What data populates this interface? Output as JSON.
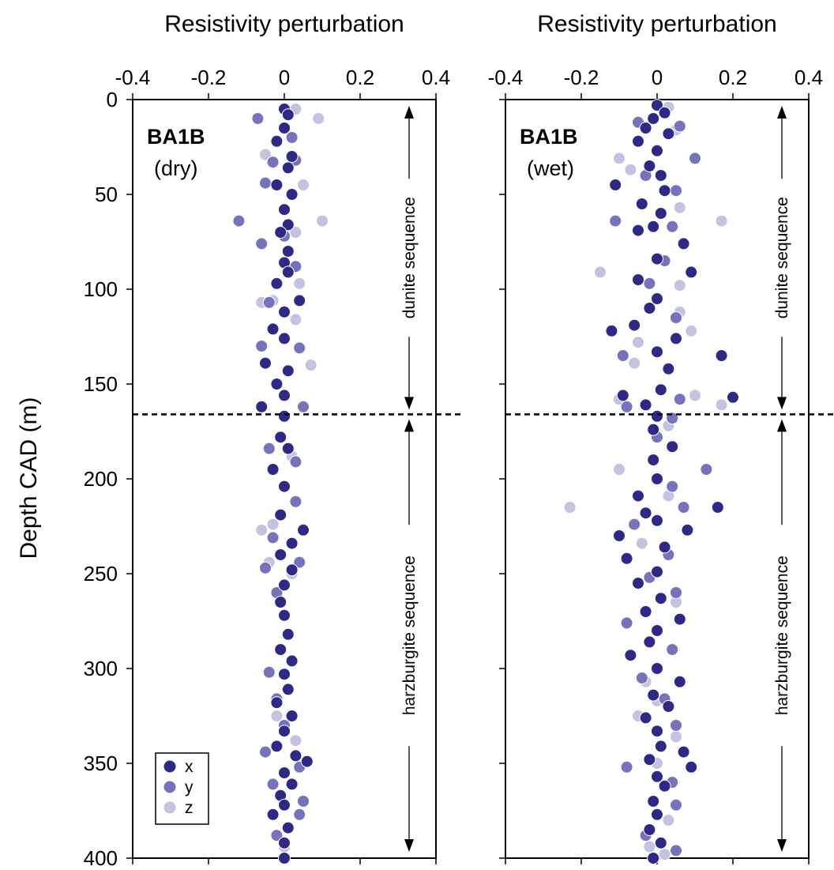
{
  "chart_data": [
    {
      "type": "scatter",
      "title": "Resistivity perturbation",
      "label_bold": "BA1B",
      "label_sub": "(dry)",
      "xlim": [
        -0.4,
        0.4
      ],
      "xticks": [
        -0.4,
        -0.2,
        0,
        0.2,
        0.4
      ],
      "xtick_labels": [
        "-0.4",
        "-0.2",
        "0",
        "0.2",
        "0.4"
      ],
      "ylim": [
        0,
        400
      ],
      "y_reversed": true,
      "boundary_depth": 166,
      "sequences": [
        {
          "label": "dunite sequence",
          "from": 0,
          "to": 166
        },
        {
          "label": "harzburgite sequence",
          "from": 166,
          "to": 400
        }
      ],
      "series": [
        {
          "name": "x",
          "points": [
            [
              0.0,
              5
            ],
            [
              0.01,
              8
            ],
            [
              0.0,
              15
            ],
            [
              -0.02,
              22
            ],
            [
              0.02,
              30
            ],
            [
              0.01,
              36
            ],
            [
              -0.02,
              45
            ],
            [
              0.02,
              50
            ],
            [
              0.0,
              58
            ],
            [
              0.01,
              66
            ],
            [
              -0.01,
              70
            ],
            [
              0.01,
              80
            ],
            [
              0.0,
              86
            ],
            [
              0.01,
              91
            ],
            [
              -0.02,
              97
            ],
            [
              0.04,
              106
            ],
            [
              0.0,
              112
            ],
            [
              -0.03,
              121
            ],
            [
              0.0,
              126
            ],
            [
              -0.05,
              139
            ],
            [
              0.01,
              143
            ],
            [
              -0.02,
              150
            ],
            [
              0.0,
              156
            ],
            [
              -0.06,
              162
            ],
            [
              0.0,
              167
            ],
            [
              -0.01,
              178
            ],
            [
              0.01,
              184
            ],
            [
              -0.03,
              195
            ],
            [
              0.0,
              204
            ],
            [
              -0.01,
              219
            ],
            [
              0.05,
              227
            ],
            [
              0.02,
              234
            ],
            [
              -0.01,
              240
            ],
            [
              0.02,
              248
            ],
            [
              0.0,
              256
            ],
            [
              -0.01,
              265
            ],
            [
              0.0,
              272
            ],
            [
              0.01,
              282
            ],
            [
              -0.01,
              290
            ],
            [
              0.02,
              296
            ],
            [
              0.0,
              303
            ],
            [
              0.01,
              311
            ],
            [
              -0.02,
              318
            ],
            [
              0.02,
              325
            ],
            [
              0.0,
              333
            ],
            [
              -0.02,
              341
            ],
            [
              0.03,
              346
            ],
            [
              0.06,
              349
            ],
            [
              0.0,
              355
            ],
            [
              0.02,
              361
            ],
            [
              -0.01,
              367
            ],
            [
              0.0,
              372
            ],
            [
              -0.03,
              377
            ],
            [
              0.01,
              384
            ],
            [
              0.0,
              392
            ],
            [
              0.0,
              400
            ]
          ]
        },
        {
          "name": "y",
          "points": [
            [
              -0.07,
              10
            ],
            [
              0.02,
              20
            ],
            [
              -0.03,
              33
            ],
            [
              0.03,
              32
            ],
            [
              -0.05,
              44
            ],
            [
              -0.12,
              64
            ],
            [
              0.0,
              72
            ],
            [
              -0.06,
              76
            ],
            [
              0.03,
              88
            ],
            [
              -0.04,
              107
            ],
            [
              -0.06,
              130
            ],
            [
              0.04,
              131
            ],
            [
              0.05,
              162
            ],
            [
              -0.04,
              184
            ],
            [
              0.03,
              191
            ],
            [
              0.03,
              212
            ],
            [
              -0.03,
              231
            ],
            [
              -0.05,
              247
            ],
            [
              0.04,
              244
            ],
            [
              -0.02,
              260
            ],
            [
              -0.04,
              302
            ],
            [
              -0.02,
              316
            ],
            [
              0.0,
              330
            ],
            [
              -0.05,
              344
            ],
            [
              0.04,
              352
            ],
            [
              -0.03,
              361
            ],
            [
              0.05,
              370
            ],
            [
              0.04,
              377
            ],
            [
              -0.02,
              388
            ]
          ]
        },
        {
          "name": "z",
          "points": [
            [
              0.03,
              5
            ],
            [
              0.09,
              10
            ],
            [
              -0.05,
              29
            ],
            [
              0.05,
              45
            ],
            [
              0.1,
              64
            ],
            [
              0.03,
              70
            ],
            [
              0.04,
              97
            ],
            [
              -0.03,
              106
            ],
            [
              0.03,
              116
            ],
            [
              0.07,
              140
            ],
            [
              -0.06,
              107
            ],
            [
              -0.06,
              227
            ],
            [
              -0.03,
              224
            ],
            [
              -0.04,
              244
            ],
            [
              0.02,
              188
            ],
            [
              0.02,
              250
            ],
            [
              -0.02,
              325
            ],
            [
              0.03,
              338
            ],
            [
              0.0,
              394
            ]
          ]
        }
      ]
    },
    {
      "type": "scatter",
      "title": "Resistivity perturbation",
      "label_bold": "BA1B",
      "label_sub": "(wet)",
      "xlim": [
        -0.4,
        0.4
      ],
      "xticks": [
        -0.4,
        -0.2,
        0,
        0.2,
        0.4
      ],
      "xtick_labels": [
        "-0.4",
        "-0.2",
        "0",
        "0.2",
        "0.4"
      ],
      "ylim": [
        0,
        400
      ],
      "y_reversed": true,
      "boundary_depth": 166,
      "sequences": [
        {
          "label": "dunite sequence",
          "from": 0,
          "to": 166
        },
        {
          "label": "harzburgite sequence",
          "from": 166,
          "to": 400
        }
      ],
      "series": [
        {
          "name": "x",
          "points": [
            [
              0.0,
              3
            ],
            [
              0.02,
              7
            ],
            [
              -0.01,
              10
            ],
            [
              -0.03,
              15
            ],
            [
              0.03,
              18
            ],
            [
              -0.05,
              22
            ],
            [
              0.0,
              27
            ],
            [
              -0.02,
              35
            ],
            [
              0.01,
              40
            ],
            [
              -0.11,
              45
            ],
            [
              0.02,
              48
            ],
            [
              -0.04,
              55
            ],
            [
              0.01,
              60
            ],
            [
              -0.01,
              67
            ],
            [
              -0.05,
              69
            ],
            [
              0.07,
              76
            ],
            [
              0.0,
              84
            ],
            [
              0.09,
              91
            ],
            [
              -0.05,
              95
            ],
            [
              0.0,
              105
            ],
            [
              -0.02,
              110
            ],
            [
              -0.06,
              119
            ],
            [
              0.05,
              126
            ],
            [
              0.0,
              133
            ],
            [
              0.17,
              135
            ],
            [
              0.03,
              142
            ],
            [
              -0.12,
              122
            ],
            [
              0.01,
              153
            ],
            [
              -0.09,
              156
            ],
            [
              0.2,
              157
            ],
            [
              -0.03,
              161
            ],
            [
              0.0,
              167
            ],
            [
              -0.01,
              174
            ],
            [
              0.04,
              183
            ],
            [
              -0.01,
              190
            ],
            [
              0.0,
              200
            ],
            [
              -0.05,
              209
            ],
            [
              -0.03,
              218
            ],
            [
              0.16,
              215
            ],
            [
              0.0,
              222
            ],
            [
              0.08,
              227
            ],
            [
              -0.1,
              230
            ],
            [
              0.02,
              236
            ],
            [
              -0.08,
              242
            ],
            [
              0.0,
              249
            ],
            [
              -0.05,
              255
            ],
            [
              0.01,
              263
            ],
            [
              -0.03,
              270
            ],
            [
              0.06,
              274
            ],
            [
              0.0,
              280
            ],
            [
              -0.02,
              286
            ],
            [
              -0.07,
              293
            ],
            [
              0.0,
              300
            ],
            [
              0.06,
              307
            ],
            [
              -0.01,
              314
            ],
            [
              0.03,
              320
            ],
            [
              -0.03,
              326
            ],
            [
              0.0,
              333
            ],
            [
              0.07,
              344
            ],
            [
              0.01,
              341
            ],
            [
              -0.02,
              348
            ],
            [
              0.09,
              352
            ],
            [
              0.0,
              357
            ],
            [
              0.02,
              362
            ],
            [
              -0.01,
              370
            ],
            [
              0.0,
              377
            ],
            [
              -0.02,
              385
            ],
            [
              0.01,
              392
            ],
            [
              -0.01,
              400
            ]
          ]
        },
        {
          "name": "y",
          "points": [
            [
              -0.05,
              12
            ],
            [
              0.06,
              14
            ],
            [
              0.1,
              31
            ],
            [
              -0.03,
              40
            ],
            [
              0.05,
              48
            ],
            [
              -0.11,
              64
            ],
            [
              0.04,
              67
            ],
            [
              0.02,
              85
            ],
            [
              -0.02,
              97
            ],
            [
              0.05,
              115
            ],
            [
              -0.09,
              135
            ],
            [
              0.06,
              158
            ],
            [
              -0.08,
              162
            ],
            [
              0.04,
              168
            ],
            [
              0.0,
              178
            ],
            [
              0.13,
              195
            ],
            [
              0.04,
              204
            ],
            [
              0.07,
              215
            ],
            [
              -0.06,
              224
            ],
            [
              0.03,
              240
            ],
            [
              -0.02,
              252
            ],
            [
              0.05,
              260
            ],
            [
              -0.08,
              276
            ],
            [
              0.04,
              290
            ],
            [
              -0.04,
              305
            ],
            [
              0.02,
              316
            ],
            [
              0.05,
              330
            ],
            [
              -0.08,
              352
            ],
            [
              0.04,
              360
            ],
            [
              0.05,
              372
            ],
            [
              -0.03,
              388
            ],
            [
              0.05,
              396
            ]
          ]
        },
        {
          "name": "z",
          "points": [
            [
              0.03,
              4
            ],
            [
              0.05,
              16
            ],
            [
              -0.1,
              31
            ],
            [
              -0.07,
              37
            ],
            [
              0.06,
              57
            ],
            [
              0.17,
              64
            ],
            [
              -0.15,
              91
            ],
            [
              0.06,
              98
            ],
            [
              0.06,
              112
            ],
            [
              0.09,
              122
            ],
            [
              -0.05,
              128
            ],
            [
              -0.06,
              139
            ],
            [
              0.1,
              156
            ],
            [
              0.17,
              161
            ],
            [
              -0.1,
              158
            ],
            [
              0.03,
              172
            ],
            [
              -0.1,
              195
            ],
            [
              -0.23,
              215
            ],
            [
              0.03,
              209
            ],
            [
              -0.04,
              234
            ],
            [
              0.05,
              265
            ],
            [
              -0.03,
              307
            ],
            [
              0.0,
              317
            ],
            [
              -0.05,
              325
            ],
            [
              0.05,
              336
            ],
            [
              0.0,
              350
            ],
            [
              0.03,
              380
            ],
            [
              -0.02,
              394
            ],
            [
              0.02,
              398
            ]
          ]
        }
      ]
    }
  ],
  "shared": {
    "ylabel": "Depth CAD (m)",
    "yticks": [
      0,
      50,
      100,
      150,
      200,
      250,
      300,
      350,
      400
    ],
    "ytick_labels": [
      "0",
      "50",
      "100",
      "150",
      "200",
      "250",
      "300",
      "350",
      "400"
    ],
    "legend": {
      "placement": "bottom-left of left panel",
      "entries": [
        "x",
        "y",
        "z"
      ]
    },
    "colors": {
      "x": "#2d2a87",
      "y": "#7473bb",
      "z": "#c3c3e1",
      "axis": "#000000"
    }
  }
}
